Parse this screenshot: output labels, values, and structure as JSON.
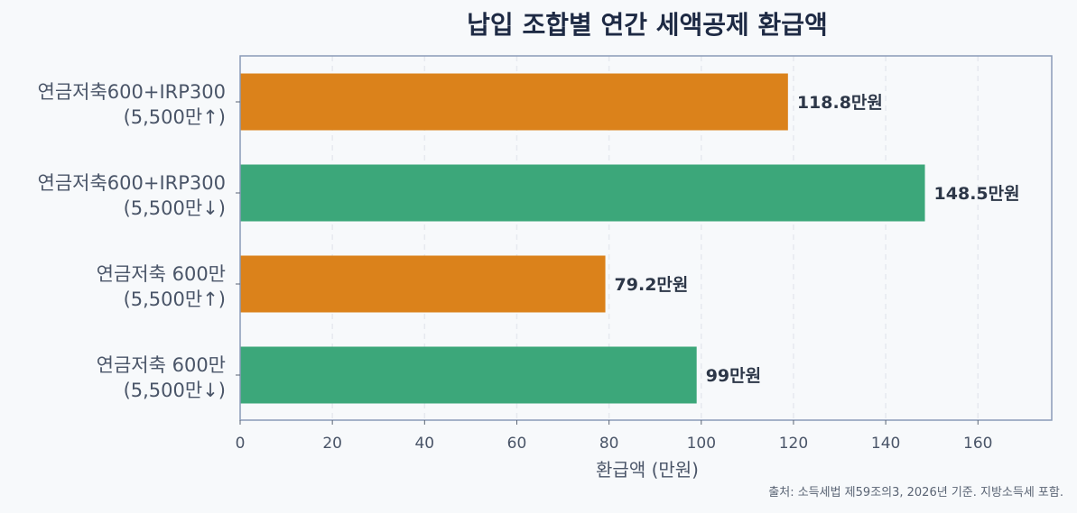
{
  "chart_data": {
    "type": "bar",
    "orientation": "horizontal",
    "title": "납입 조합별 연간 세액공제 환급액",
    "xlabel": "환급액 (만원)",
    "ylabel": "",
    "xlim": [
      0,
      176
    ],
    "xticks": [
      "0",
      "20",
      "40",
      "60",
      "80",
      "100",
      "120",
      "140",
      "160"
    ],
    "grid": "vertical-dashed",
    "categories": [
      [
        "연금저축600+IRP300",
        "(5,500만↑)"
      ],
      [
        "연금저축600+IRP300",
        "(5,500만↓)"
      ],
      [
        "연금저축 600만",
        "(5,500만↑)"
      ],
      [
        "연금저축 600만",
        "(5,500만↓)"
      ]
    ],
    "values": [
      118.8,
      148.5,
      79.2,
      99
    ],
    "data_labels": [
      "118.8만원",
      "148.5만원",
      "79.2만원",
      "99만원"
    ],
    "bar_colors": [
      "#db821b",
      "#3ca77a",
      "#db821b",
      "#3ca77a"
    ],
    "source": "출처: 소득세법 제59조의3, 2026년 기준. 지방소득세 포함."
  },
  "colors": {
    "background": "#f7f9fb",
    "frame": "#8a9bb8",
    "grid": "#e6e9ef",
    "title": "#1e2a44"
  }
}
